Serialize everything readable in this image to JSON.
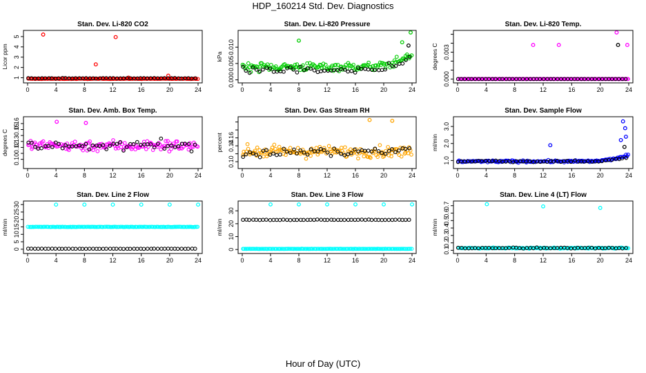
{
  "figure": {
    "title": "HDP_160214  Std. Dev. Diagnostics",
    "xlabel": "Hour of Day (UTC)"
  },
  "colors": {
    "red": "#ff0000",
    "green": "#00cc00",
    "magenta": "#ff00ff",
    "orange": "#ffa500",
    "blue": "#0000ff",
    "cyan": "#00ffff",
    "black": "#000000"
  },
  "chart_data": [
    {
      "type": "scatter",
      "title": "Stan. Dev. Li-820 CO2",
      "ylabel": "Licor ppm",
      "xlim": [
        0,
        24
      ],
      "xticks": [
        0,
        4,
        8,
        12,
        16,
        20,
        24
      ],
      "ylim": [
        0.7,
        5.4
      ],
      "yticks": [
        1,
        2,
        3,
        4,
        5
      ],
      "series": [
        {
          "color": "red",
          "baseline": 0.9,
          "spread": 0.04,
          "outliers": [
            [
              2.2,
              5.2
            ],
            [
              9.6,
              2.3
            ],
            [
              12.4,
              4.95
            ],
            [
              19.8,
              1.2
            ],
            [
              14.2,
              1.0
            ]
          ]
        },
        {
          "color": "black",
          "baseline": 0.95,
          "spread": 0.04,
          "outliers": []
        }
      ]
    },
    {
      "type": "scatter",
      "title": "Stan. Dev. Li-820 Pressure",
      "ylabel": "kPa",
      "xlim": [
        0,
        24
      ],
      "xticks": [
        0,
        4,
        8,
        12,
        16,
        20,
        24
      ],
      "ylim": [
        -0.0003,
        0.0145
      ],
      "yticks": [
        0.0,
        0.005,
        0.01
      ],
      "ytick_labels": [
        "0.000",
        "0.005",
        "0.010"
      ],
      "series": [
        {
          "color": "green",
          "baseline": 0.004,
          "spread": 0.0022,
          "trend_end": 0.008,
          "outliers": [
            [
              8.0,
              0.012
            ],
            [
              23.8,
              0.0145
            ],
            [
              22.6,
              0.0115
            ]
          ]
        },
        {
          "color": "black",
          "baseline": 0.003,
          "spread": 0.0018,
          "trend_end": 0.007,
          "outliers": [
            [
              23.5,
              0.0105
            ]
          ]
        }
      ]
    },
    {
      "type": "scatter",
      "title": "Stan. Dev. Li-820 Temp.",
      "ylabel": "degrees C",
      "xlim": [
        0,
        24
      ],
      "xticks": [
        0,
        4,
        8,
        12,
        16,
        20,
        24
      ],
      "ylim": [
        -0.0002,
        0.0052
      ],
      "yticks": [
        0.0,
        0.001,
        0.002,
        0.003,
        0.004,
        0.005
      ],
      "ytick_labels": [
        "0.000",
        "",
        "",
        "0.003",
        "",
        ""
      ],
      "series": [
        {
          "color": "magenta",
          "baseline": 0.0,
          "spread": 0.0,
          "outliers": [
            [
              10.6,
              0.0038
            ],
            [
              14.2,
              0.0038
            ],
            [
              22.3,
              0.0052
            ],
            [
              23.8,
              0.0038
            ],
            [
              22.6,
              0.0
            ]
          ]
        },
        {
          "color": "black",
          "baseline": 0.0,
          "spread": 0.0,
          "outliers": [
            [
              22.5,
              0.0038
            ]
          ]
        }
      ]
    },
    {
      "type": "scatter",
      "title": "Stan. Dev. Amb. Box Temp.",
      "ylabel": "degrees C",
      "xlim": [
        0,
        24
      ],
      "xticks": [
        0,
        4,
        8,
        12,
        16,
        20,
        24
      ],
      "ylim": [
        0.088,
        0.168
      ],
      "yticks": [
        0.1,
        0.11,
        0.12,
        0.13,
        0.14,
        0.15,
        0.16
      ],
      "ytick_labels": [
        "0.10",
        "",
        "0.12",
        "0.13",
        "",
        "0.15",
        "0.16"
      ],
      "series": [
        {
          "color": "magenta",
          "baseline": 0.123,
          "spread": 0.016,
          "outliers": [
            [
              4.1,
              0.163
            ],
            [
              8.2,
              0.161
            ]
          ]
        },
        {
          "color": "black",
          "baseline": 0.123,
          "spread": 0.014,
          "outliers": []
        }
      ]
    },
    {
      "type": "scatter",
      "title": "Stan. Dev. Gas Stream RH",
      "ylabel": "percent",
      "xlim": [
        0,
        24
      ],
      "xticks": [
        0,
        4,
        8,
        12,
        16,
        20,
        24
      ],
      "ylim": [
        0.088,
        0.208
      ],
      "yticks": [
        0.1,
        0.12,
        0.14,
        0.16,
        0.18,
        0.2
      ],
      "ytick_labels": [
        "0.10",
        "",
        "0.14",
        "0.16",
        "",
        ""
      ],
      "series": [
        {
          "color": "orange",
          "baseline": 0.125,
          "spread": 0.024,
          "outliers": [
            [
              18.0,
              0.205
            ],
            [
              21.2,
              0.203
            ]
          ]
        },
        {
          "color": "black",
          "baseline": 0.125,
          "spread": 0.02,
          "outliers": []
        }
      ]
    },
    {
      "type": "scatter",
      "title": "Stan. Dev. Sample Flow",
      "ylabel": "ml/min",
      "xlim": [
        0,
        24
      ],
      "xticks": [
        0,
        4,
        8,
        12,
        16,
        20,
        24
      ],
      "ylim": [
        0.65,
        3.45
      ],
      "yticks": [
        1.0,
        1.5,
        2.0,
        2.5,
        3.0
      ],
      "ytick_labels": [
        "1.0",
        "",
        "2.0",
        "",
        "3.0"
      ],
      "series": [
        {
          "color": "blue",
          "baseline": 0.95,
          "spread": 0.1,
          "trend_end": 1.3,
          "outliers": [
            [
              23.2,
              3.3
            ],
            [
              23.5,
              2.9
            ],
            [
              23.6,
              2.4
            ],
            [
              13.0,
              1.9
            ],
            [
              22.9,
              2.2
            ]
          ]
        },
        {
          "color": "black",
          "baseline": 0.95,
          "spread": 0.08,
          "trend_end": 1.2,
          "outliers": [
            [
              23.4,
              1.8
            ]
          ]
        }
      ]
    },
    {
      "type": "scatter",
      "title": "Stan. Dev. Line 2 Flow",
      "ylabel": "ml/min",
      "xlim": [
        0,
        24
      ],
      "xticks": [
        0,
        4,
        8,
        12,
        16,
        20,
        24
      ],
      "ylim": [
        -1.5,
        31
      ],
      "yticks": [
        0,
        5,
        10,
        15,
        20,
        25,
        30
      ],
      "ytick_labels": [
        "0",
        "5",
        "10",
        "15",
        "20",
        "25",
        "30"
      ],
      "series": [
        {
          "color": "cyan",
          "baseline": 15.0,
          "spread": 0.2,
          "outliers": [
            [
              4.0,
              30.0
            ],
            [
              8.0,
              30.0
            ],
            [
              12.0,
              30.0
            ],
            [
              16.0,
              30.0
            ],
            [
              20.0,
              30.0
            ],
            [
              24.0,
              30.0
            ]
          ]
        },
        {
          "color": "black",
          "baseline": 0.3,
          "spread": 0.1,
          "outliers": []
        }
      ]
    },
    {
      "type": "scatter",
      "title": "Stan. Dev. Line 3 Flow",
      "ylabel": "ml/min",
      "xlim": [
        0,
        24
      ],
      "xticks": [
        0,
        4,
        8,
        12,
        16,
        20,
        24
      ],
      "ylim": [
        -1.5,
        36
      ],
      "yticks": [
        0,
        10,
        20,
        30
      ],
      "ytick_labels": [
        "0",
        "10",
        "20",
        "30"
      ],
      "series": [
        {
          "color": "cyan",
          "baseline": 0.5,
          "spread": 0.15,
          "outliers": [
            [
              4.0,
              35.0
            ],
            [
              8.0,
              35.0
            ],
            [
              12.0,
              35.0
            ],
            [
              16.0,
              35.0
            ],
            [
              20.0,
              35.0
            ],
            [
              24.0,
              35.0
            ]
          ]
        },
        {
          "color": "black",
          "baseline": 23.0,
          "spread": 0.4,
          "outliers": []
        }
      ]
    },
    {
      "type": "scatter",
      "title": "Stan. Dev. Line 4 (LT) Flow",
      "ylabel": "ml/min",
      "xlim": [
        0,
        24
      ],
      "xticks": [
        0,
        4,
        8,
        12,
        16,
        20,
        24
      ],
      "ylim": [
        0.085,
        0.735
      ],
      "yticks": [
        0.1,
        0.2,
        0.3,
        0.4,
        0.5,
        0.6,
        0.7
      ],
      "ytick_labels": [
        "0.1",
        "0.2",
        "0.3",
        "0.4",
        "0.5",
        "0.6",
        "0.7"
      ],
      "series": [
        {
          "color": "cyan",
          "baseline": 0.13,
          "spread": 0.012,
          "outliers": [
            [
              4.1,
              0.72
            ],
            [
              12.0,
              0.69
            ],
            [
              20.0,
              0.67
            ]
          ]
        },
        {
          "color": "black",
          "baseline": 0.13,
          "spread": 0.01,
          "outliers": []
        }
      ]
    }
  ]
}
